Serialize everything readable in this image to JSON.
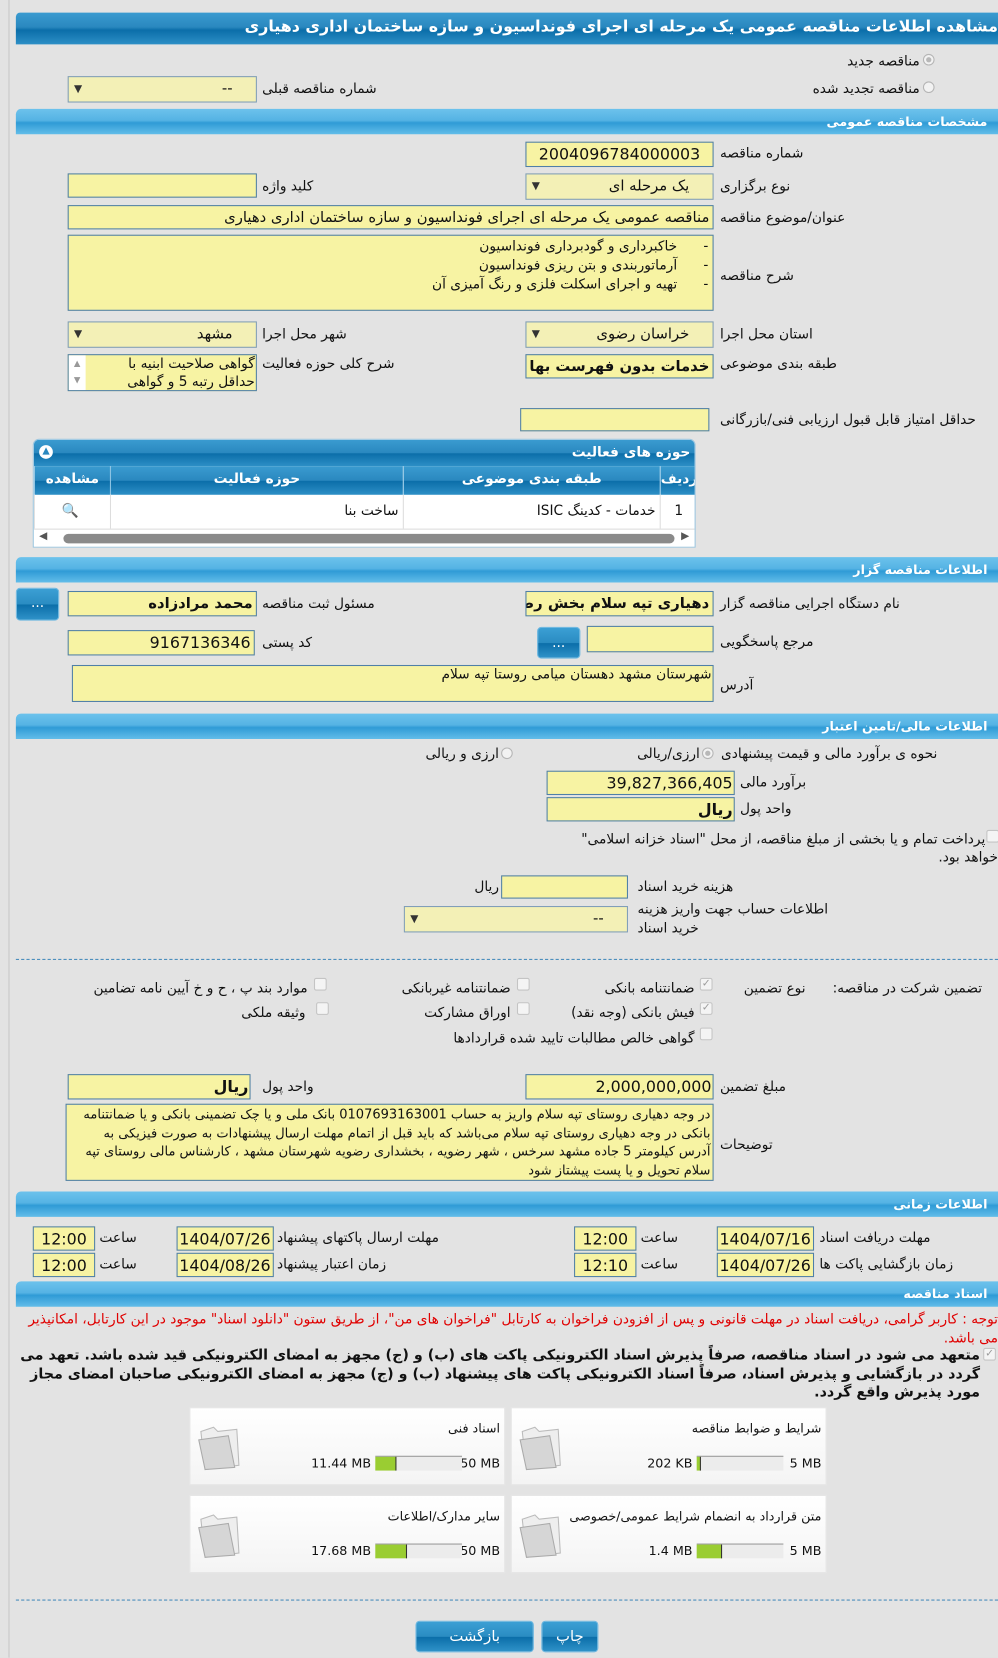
{
  "title": "مشاهده اطلاعات مناقصه عمومی یک مرحله ای اجرای فونداسیون و سازه ساختمان اداری دهیاری",
  "radios": {
    "new_tender": "مناقصه جدید",
    "renewed_tender": "مناقصه تجدید شده"
  },
  "previous_tender": {
    "label": "شماره مناقصه قبلی",
    "value": "--"
  },
  "general": {
    "section": "مشخصات مناقصه عمومی",
    "tender_number_label": "شماره مناقصه",
    "tender_number": "2004096784000003",
    "type_label": "نوع برگزاری",
    "type": "یک مرحله ای",
    "keyword_label": "کلید واژه",
    "keyword": "",
    "subject_label": "عنوان/موضوع مناقصه",
    "subject": "مناقصه عمومی یک مرحله ای اجرای فونداسیون و سازه ساختمان اداری دهیاری",
    "desc_label": "شرح مناقصه",
    "desc_lines": [
      "-      خاکبرداری و گودبرداری فونداسیون",
      "-      آرماتوربندی و بتن ریزی فونداسیون",
      "-      تهیه و اجرای اسکلت فلزی و رنگ آمیزی آن"
    ],
    "province_label": "استان محل اجرا",
    "province": "خراسان رضوی",
    "city_label": "شهر محل اجرا",
    "city": "مشهد",
    "category_label": "طبقه بندی موضوعی",
    "category": "خدمات بدون فهرست بها",
    "scope_label": "شرح کلی حوزه فعالیت",
    "scope": "گواهی صلاحیت ابنیه با حداقل رتبه 5 و گواهی",
    "min_score_label": "حداقل امتیاز قابل قبول ارزیابی فنی/بازرگانی",
    "min_score": ""
  },
  "activities": {
    "title": "حوزه های فعالیت",
    "columns": [
      "ردیف",
      "طبقه بندی موضوعی",
      "حوزه فعالیت",
      "مشاهده"
    ],
    "rows": [
      {
        "index": "1",
        "category": "خدمات - کدینگ ISIC",
        "activity": "ساخت بنا"
      }
    ]
  },
  "organizer": {
    "section": "اطلاعات مناقصه گزار",
    "org_label": "نام دستگاه اجرایی مناقصه گزار",
    "org": "دهیاری تپه سلام بخش رضویه",
    "registrar_label": "مسئول ثبت مناقصه",
    "registrar": "محمد مرادزاده",
    "reference_label": "مرجع پاسخگویی",
    "reference": "",
    "postal_label": "کد پستی",
    "postal": "9167136346",
    "address_label": "آدرس",
    "address": "شهرستان مشهد دهستان میامی روستا تپه سلام",
    "more_button": "..."
  },
  "finance": {
    "section": "اطلاعات مالی/تامین اعتبار",
    "method_label": "نحوه ی برآورد مالی و قیمت پیشنهادی",
    "method_opt1": "ارزی/ریالی",
    "method_opt2": "ارزی و ریالی",
    "estimate_label": "برآورد مالی",
    "estimate": "39,827,366,405",
    "currency_label": "واحد پول",
    "currency": "ریال",
    "treasury_text": "پرداخت تمام و یا بخشی از مبلغ مناقصه، از محل \"اسناد خزانه اسلامی\"",
    "treasury_text2": "خواهد بود.",
    "doc_fee_label": "هزینه خرید اسناد",
    "doc_fee": "",
    "doc_fee_unit": "ریال",
    "account_label1": "اطلاعات حساب جهت واریز هزینه",
    "account_label2": "خرید اسناد",
    "account": "--"
  },
  "guarantee": {
    "label": "تضمین شرکت در مناقصه:",
    "type_label": "نوع تضمین",
    "options": [
      {
        "label": "ضمانتنامه بانکی",
        "checked": true
      },
      {
        "label": "ضمانتنامه غیربانکی",
        "checked": false
      },
      {
        "label": "موارد بند پ ، ح و خ آیین نامه تضامین",
        "checked": false
      },
      {
        "label": "فیش بانکی (وجه نقد)",
        "checked": true
      },
      {
        "label": "اوراق مشارکت",
        "checked": false
      },
      {
        "label": "وثیقه ملکی",
        "checked": false
      },
      {
        "label": "گواهی خالص مطالبات تایید شده قراردادها",
        "checked": false
      }
    ],
    "amount_label": "مبلغ تضمین",
    "amount": "2,000,000,000",
    "currency_label": "واحد پول",
    "currency": "ریال",
    "notes_label": "توضیحات",
    "notes": "در وجه دهیاری روستای تپه سلام واریز به حساب 0107693163001 بانک ملی و یا چک تضمینی بانکی و یا ضمانتنامه بانکی در وجه دهیاری روستای تپه سلام می‌باشد که باید قبل از اتمام مهلت ارسال پیشنهادات به صورت فیزیکی به آدرس کیلومتر 5 جاده مشهد سرخس ، شهر رضویه ، بخشداری رضویه شهرستان مشهد ، کارشناس مالی روستای تپه سلام تحویل و یا پست پیشتاز شود"
  },
  "timing": {
    "section": "اطلاعات زمانی",
    "time_label": "ساعت",
    "doc_receive_label": "مهلت دریافت اسناد",
    "doc_receive_date": "1404/07/16",
    "doc_receive_time": "12:00",
    "submit_label": "مهلت ارسال پاکتهای پیشنهاد",
    "submit_date": "1404/07/26",
    "submit_time": "12:00",
    "opening_label": "زمان بازگشایی پاکت ها",
    "opening_date": "1404/07/26",
    "opening_time": "12:10",
    "validity_label": "زمان اعتبار پیشنهاد",
    "validity_date": "1404/08/26",
    "validity_time": "12:00"
  },
  "documents": {
    "section": "اسناد مناقصه",
    "notice": "توجه : کاربر گرامی، دریافت اسناد در مهلت قانونی و پس از افزودن فراخوان به کارتابل \"فراخوان های من\"، از طریق ستون \"دانلود اسناد\" موجود در این کارتابل، امکانپذیر می باشد.",
    "commitment": "متعهد می شود در اسناد مناقصه، صرفاً پذیرش اسناد الکترونیکی پاکت های (ب) و (ج) مجهز به امضای الکترونیکی قید شده باشد. تعهد می گردد در بازگشایی و پذیرش اسناد، صرفاً اسناد الکترونیکی پاکت های پیشنهاد (ب) و (ج) مجهز به امضای الکترونیکی صاحبان امضای مجاز مورد پذیرش واقع گردد.",
    "files": [
      {
        "name": "شرایط و ضوابط مناقصه",
        "used": "202 KB",
        "max": "5 MB",
        "fill_percent": 4
      },
      {
        "name": "اسناد فنی",
        "used": "11.44 MB",
        "max": "50 MB",
        "fill_percent": 23
      },
      {
        "name": "متن قرارداد به انضمام شرایط عمومی/خصوصی",
        "used": "1.4 MB",
        "max": "5 MB",
        "fill_percent": 28
      },
      {
        "name": "سایر مدارک/اطلاعات",
        "used": "17.68 MB",
        "max": "50 MB",
        "fill_percent": 35
      }
    ]
  },
  "buttons": {
    "back": "بازگشت",
    "print": "چاپ"
  },
  "colors": {
    "header_blue": "#0b6ea9",
    "section_blue": "#55b3e4",
    "field_yellow": "#f7f3a3",
    "progress_green": "#9acd32",
    "notice_red": "#e00000"
  }
}
